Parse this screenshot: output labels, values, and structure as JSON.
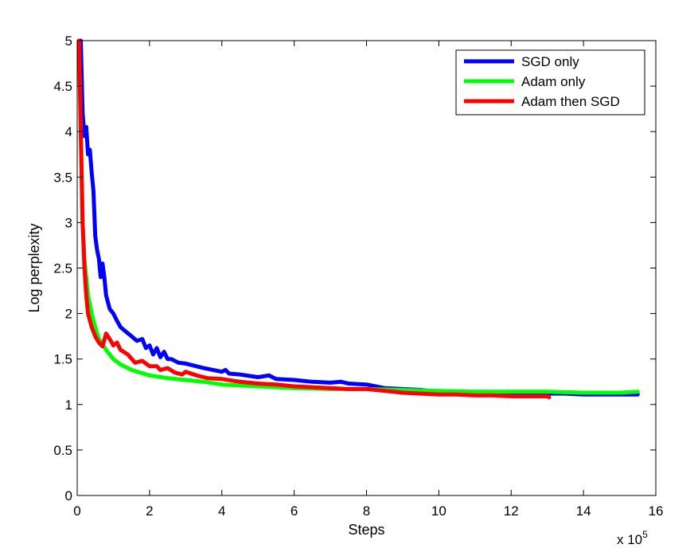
{
  "chart_data": {
    "type": "line",
    "title": "",
    "xlabel": "Steps",
    "ylabel": "Log perplexity",
    "x_multiplier_label": "x 10",
    "x_multiplier_exponent": "5",
    "xlim": [
      0,
      16
    ],
    "ylim": [
      0,
      5
    ],
    "xticks": [
      0,
      2,
      4,
      6,
      8,
      10,
      12,
      14,
      16
    ],
    "xtick_labels": [
      "0",
      "2",
      "4",
      "6",
      "8",
      "10",
      "12",
      "14",
      "16"
    ],
    "yticks": [
      0,
      0.5,
      1,
      1.5,
      2,
      2.5,
      3,
      3.5,
      4,
      4.5,
      5
    ],
    "ytick_labels": [
      "0",
      "0.5",
      "1",
      "1.5",
      "2",
      "2.5",
      "3",
      "3.5",
      "4",
      "4.5",
      "5"
    ],
    "grid": false,
    "legend_position": "top-right",
    "series": [
      {
        "name": "SGD only",
        "color": "#0000ff",
        "x": [
          0.1,
          0.15,
          0.2,
          0.25,
          0.3,
          0.35,
          0.4,
          0.45,
          0.5,
          0.55,
          0.6,
          0.65,
          0.7,
          0.75,
          0.8,
          0.9,
          1.0,
          1.1,
          1.2,
          1.35,
          1.5,
          1.65,
          1.8,
          1.9,
          2.0,
          2.1,
          2.2,
          2.3,
          2.4,
          2.5,
          2.6,
          2.8,
          3.0,
          3.5,
          4.0,
          4.1,
          4.2,
          4.5,
          5.0,
          5.3,
          5.5,
          6.0,
          6.5,
          7.0,
          7.3,
          7.5,
          8.0,
          8.5,
          9.0,
          9.5,
          10.0,
          10.5,
          11.0,
          11.5,
          12.0,
          12.5,
          13.0,
          13.5,
          14.0,
          14.5,
          15.0,
          15.5
        ],
        "y": [
          5.0,
          4.2,
          3.95,
          4.05,
          3.75,
          3.8,
          3.55,
          3.35,
          2.85,
          2.7,
          2.6,
          2.4,
          2.55,
          2.4,
          2.2,
          2.05,
          2.0,
          1.92,
          1.85,
          1.8,
          1.75,
          1.7,
          1.72,
          1.62,
          1.65,
          1.55,
          1.62,
          1.52,
          1.58,
          1.5,
          1.5,
          1.46,
          1.45,
          1.4,
          1.36,
          1.38,
          1.34,
          1.33,
          1.3,
          1.32,
          1.28,
          1.27,
          1.25,
          1.24,
          1.25,
          1.23,
          1.22,
          1.18,
          1.17,
          1.16,
          1.14,
          1.14,
          1.13,
          1.13,
          1.12,
          1.12,
          1.12,
          1.12,
          1.11,
          1.11,
          1.11,
          1.11
        ]
      },
      {
        "name": "Adam only",
        "color": "#00ff00",
        "x": [
          0.05,
          0.1,
          0.15,
          0.2,
          0.3,
          0.4,
          0.5,
          0.6,
          0.8,
          1.0,
          1.2,
          1.5,
          2.0,
          2.5,
          3.0,
          3.5,
          4.0,
          5.0,
          6.0,
          7.0,
          8.0,
          9.0,
          10.0,
          11.0,
          12.0,
          13.0,
          14.0,
          15.0,
          15.5
        ],
        "y": [
          5.0,
          4.0,
          3.0,
          2.6,
          2.2,
          2.0,
          1.85,
          1.72,
          1.6,
          1.5,
          1.44,
          1.38,
          1.32,
          1.29,
          1.27,
          1.25,
          1.22,
          1.2,
          1.18,
          1.17,
          1.17,
          1.16,
          1.15,
          1.14,
          1.14,
          1.14,
          1.13,
          1.13,
          1.14
        ]
      },
      {
        "name": "Adam then SGD",
        "color": "#ff0000",
        "x": [
          0.05,
          0.1,
          0.15,
          0.2,
          0.25,
          0.3,
          0.4,
          0.5,
          0.6,
          0.7,
          0.8,
          0.9,
          1.0,
          1.1,
          1.2,
          1.4,
          1.6,
          1.8,
          2.0,
          2.2,
          2.3,
          2.5,
          2.7,
          2.9,
          3.0,
          3.3,
          3.6,
          4.0,
          4.5,
          5.0,
          5.5,
          6.0,
          6.5,
          7.0,
          7.5,
          8.0,
          8.5,
          9.0,
          9.5,
          10.0,
          10.5,
          11.0,
          11.5,
          12.0,
          12.5,
          13.0,
          13.05
        ],
        "y": [
          5.0,
          4.0,
          3.0,
          2.5,
          2.2,
          2.0,
          1.85,
          1.75,
          1.68,
          1.64,
          1.78,
          1.72,
          1.65,
          1.68,
          1.6,
          1.55,
          1.46,
          1.48,
          1.42,
          1.42,
          1.38,
          1.4,
          1.35,
          1.33,
          1.36,
          1.32,
          1.29,
          1.28,
          1.25,
          1.23,
          1.22,
          1.2,
          1.19,
          1.18,
          1.17,
          1.17,
          1.15,
          1.13,
          1.12,
          1.11,
          1.11,
          1.1,
          1.1,
          1.09,
          1.09,
          1.09,
          1.08
        ]
      }
    ]
  }
}
